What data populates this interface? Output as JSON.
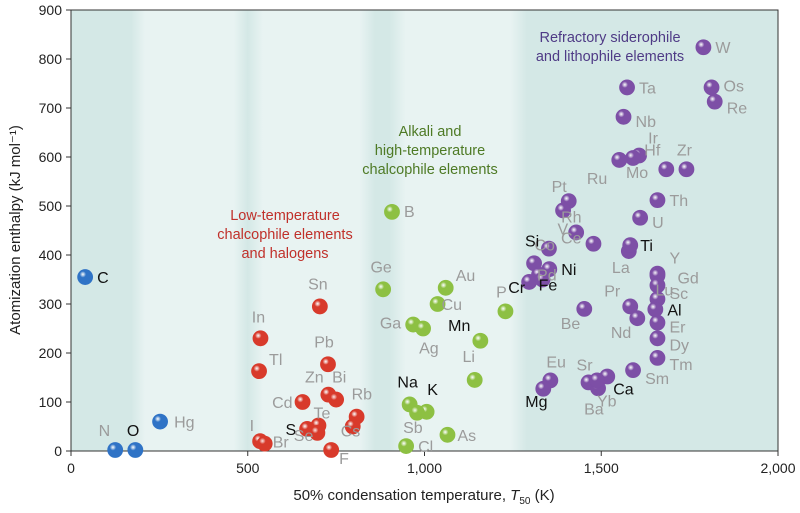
{
  "chart_data": {
    "type": "scatter",
    "xlabel_main": "50% condensation temperature, ",
    "xlabel_var": "T",
    "xlabel_sub": "50",
    "xlabel_unit": " (K)",
    "ylabel": "Atomization enthalpy (kJ mol⁻¹)",
    "xlim": [
      0,
      2000
    ],
    "ylim": [
      0,
      900
    ],
    "xticks": [
      0,
      500,
      1000,
      1500,
      2000
    ],
    "xtick_labels": [
      "0",
      "500",
      "1,000",
      "1,500",
      "2,000"
    ],
    "yticks": [
      0,
      100,
      200,
      300,
      400,
      500,
      600,
      700,
      800,
      900
    ],
    "ytick_labels": [
      "0",
      "100",
      "200",
      "300",
      "400",
      "500",
      "600",
      "700",
      "800",
      "900"
    ],
    "colors": {
      "background": "#d4e8e6",
      "band": "#e8f3f2",
      "blue": "#2f73c6",
      "red": "#d83a2b",
      "green": "#8dc043",
      "purple": "#7d4fa6",
      "label_gray": "#9b9b9b",
      "label_black": "#111111",
      "group_red": "#c0302a",
      "group_green": "#4e7a25",
      "group_purple": "#4f3b86"
    },
    "group_labels": [
      {
        "group": "red",
        "lines": [
          "Low-temperature",
          "chalcophile elements",
          "and halogens"
        ]
      },
      {
        "group": "green",
        "lines": [
          "Alkali and",
          "high-temperature",
          "chalcophile elements"
        ]
      },
      {
        "group": "purple",
        "lines": [
          "Refractory siderophile",
          "and lithophile elements"
        ]
      }
    ],
    "series": [
      {
        "group": "blue",
        "points": [
          {
            "el": "C",
            "x": 40,
            "y": 355,
            "dark": true
          },
          {
            "el": "N",
            "x": 125,
            "y": 2,
            "dark": false
          },
          {
            "el": "O",
            "x": 182,
            "y": 2,
            "dark": true
          },
          {
            "el": "Hg",
            "x": 252,
            "y": 60,
            "dark": false
          }
        ]
      },
      {
        "group": "red",
        "points": [
          {
            "el": "In",
            "x": 536,
            "y": 230,
            "dark": false
          },
          {
            "el": "Tl",
            "x": 532,
            "y": 163,
            "dark": false
          },
          {
            "el": "I",
            "x": 535,
            "y": 20,
            "dark": false
          },
          {
            "el": "Br",
            "x": 548,
            "y": 15,
            "dark": false
          },
          {
            "el": "Sn",
            "x": 704,
            "y": 295,
            "dark": false
          },
          {
            "el": "Pb",
            "x": 727,
            "y": 177,
            "dark": false
          },
          {
            "el": "Zn",
            "x": 728,
            "y": 115,
            "dark": false
          },
          {
            "el": "Bi",
            "x": 750,
            "y": 105,
            "dark": false
          },
          {
            "el": "Cd",
            "x": 655,
            "y": 100,
            "dark": false
          },
          {
            "el": "Rb",
            "x": 808,
            "y": 70,
            "dark": false
          },
          {
            "el": "S",
            "x": 668,
            "y": 45,
            "dark": true
          },
          {
            "el": "Te",
            "x": 700,
            "y": 52,
            "dark": false
          },
          {
            "el": "Se",
            "x": 697,
            "y": 37,
            "dark": false
          },
          {
            "el": "Cs",
            "x": 797,
            "y": 50,
            "dark": false
          },
          {
            "el": "F",
            "x": 736,
            "y": 2,
            "dark": false
          }
        ]
      },
      {
        "group": "green",
        "points": [
          {
            "el": "B",
            "x": 908,
            "y": 488,
            "dark": false
          },
          {
            "el": "Ge",
            "x": 883,
            "y": 330,
            "dark": false
          },
          {
            "el": "Au",
            "x": 1060,
            "y": 333,
            "dark": false
          },
          {
            "el": "Ga",
            "x": 968,
            "y": 258,
            "dark": false
          },
          {
            "el": "Cu",
            "x": 1037,
            "y": 300,
            "dark": false
          },
          {
            "el": "Ag",
            "x": 996,
            "y": 250,
            "dark": false
          },
          {
            "el": "Mn",
            "x": 1158,
            "y": 225,
            "dark": true
          },
          {
            "el": "P",
            "x": 1229,
            "y": 285,
            "dark": false
          },
          {
            "el": "Li",
            "x": 1142,
            "y": 145,
            "dark": false
          },
          {
            "el": "Na",
            "x": 958,
            "y": 95,
            "dark": true
          },
          {
            "el": "K",
            "x": 1006,
            "y": 80,
            "dark": true
          },
          {
            "el": "Sb",
            "x": 979,
            "y": 78,
            "dark": false
          },
          {
            "el": "As",
            "x": 1065,
            "y": 33,
            "dark": false
          },
          {
            "el": "Cl",
            "x": 948,
            "y": 10,
            "dark": false
          }
        ]
      },
      {
        "group": "purple",
        "points": [
          {
            "el": "W",
            "x": 1789,
            "y": 824,
            "dark": false
          },
          {
            "el": "Os",
            "x": 1812,
            "y": 742,
            "dark": false
          },
          {
            "el": "Re",
            "x": 1821,
            "y": 713,
            "dark": false
          },
          {
            "el": "Ta",
            "x": 1573,
            "y": 742,
            "dark": false
          },
          {
            "el": "Nb",
            "x": 1563,
            "y": 682,
            "dark": false
          },
          {
            "el": "Ir",
            "x": 1607,
            "y": 603,
            "dark": false
          },
          {
            "el": "Mo",
            "x": 1590,
            "y": 598,
            "dark": false
          },
          {
            "el": "Ru",
            "x": 1551,
            "y": 594,
            "dark": false
          },
          {
            "el": "Hf",
            "x": 1684,
            "y": 575,
            "dark": false
          },
          {
            "el": "Zr",
            "x": 1741,
            "y": 575,
            "dark": false
          },
          {
            "el": "Th",
            "x": 1659,
            "y": 512,
            "dark": false
          },
          {
            "el": "U",
            "x": 1610,
            "y": 476,
            "dark": false
          },
          {
            "el": "Pt",
            "x": 1408,
            "y": 510,
            "dark": false
          },
          {
            "el": "Rh",
            "x": 1392,
            "y": 491,
            "dark": false
          },
          {
            "el": "V",
            "x": 1429,
            "y": 446,
            "dark": false
          },
          {
            "el": "Ce",
            "x": 1478,
            "y": 423,
            "dark": false
          },
          {
            "el": "Co",
            "x": 1352,
            "y": 413,
            "dark": false
          },
          {
            "el": "La",
            "x": 1578,
            "y": 408,
            "dark": false
          },
          {
            "el": "Ti",
            "x": 1582,
            "y": 420,
            "dark": true
          },
          {
            "el": "Si",
            "x": 1310,
            "y": 383,
            "dark": true
          },
          {
            "el": "Ni",
            "x": 1353,
            "y": 371,
            "dark": true
          },
          {
            "el": "Pd",
            "x": 1324,
            "y": 360,
            "dark": false
          },
          {
            "el": "Cr",
            "x": 1296,
            "y": 345,
            "dark": true
          },
          {
            "el": "Fe",
            "x": 1334,
            "y": 350,
            "dark": true
          },
          {
            "el": "Y",
            "x": 1659,
            "y": 362,
            "dark": false
          },
          {
            "el": "Gd",
            "x": 1659,
            "y": 358,
            "dark": false
          },
          {
            "el": "Lu",
            "x": 1659,
            "y": 338,
            "dark": false
          },
          {
            "el": "Sc",
            "x": 1659,
            "y": 310,
            "dark": false
          },
          {
            "el": "Pr",
            "x": 1582,
            "y": 295,
            "dark": false
          },
          {
            "el": "Nd",
            "x": 1602,
            "y": 271,
            "dark": false
          },
          {
            "el": "Al",
            "x": 1653,
            "y": 289,
            "dark": true
          },
          {
            "el": "Er",
            "x": 1659,
            "y": 262,
            "dark": false
          },
          {
            "el": "Dy",
            "x": 1659,
            "y": 230,
            "dark": false
          },
          {
            "el": "Tm",
            "x": 1659,
            "y": 190,
            "dark": false
          },
          {
            "el": "Sm",
            "x": 1590,
            "y": 165,
            "dark": false
          },
          {
            "el": "Be",
            "x": 1452,
            "y": 290,
            "dark": false
          },
          {
            "el": "Eu",
            "x": 1356,
            "y": 144,
            "dark": false
          },
          {
            "el": "Mg",
            "x": 1336,
            "y": 127,
            "dark": true
          },
          {
            "el": "Sr",
            "x": 1464,
            "y": 140,
            "dark": false
          },
          {
            "el": "Ba",
            "x": 1491,
            "y": 128,
            "dark": false
          },
          {
            "el": "Ca",
            "x": 1517,
            "y": 152,
            "dark": true
          },
          {
            "el": "Yb",
            "x": 1488,
            "y": 144,
            "dark": false
          }
        ]
      }
    ]
  }
}
